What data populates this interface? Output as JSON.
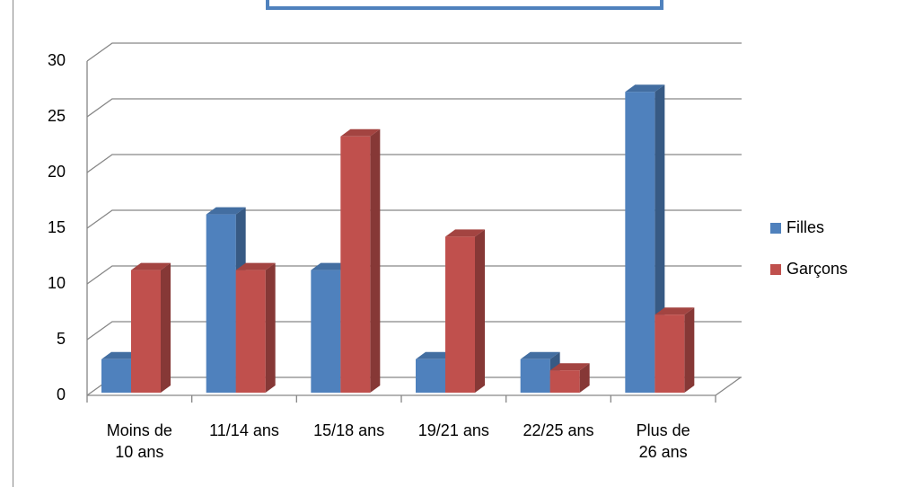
{
  "chart_data": {
    "type": "bar3d",
    "categories": [
      "Moins de 10 ans",
      "11/14 ans",
      "15/18 ans",
      "19/21 ans",
      "22/25 ans",
      "Plus de 26 ans"
    ],
    "series": [
      {
        "name": "Filles",
        "color": "#4f81bd",
        "values": [
          3,
          16,
          11,
          3,
          3,
          27
        ]
      },
      {
        "name": "Garçons",
        "color": "#c0504d",
        "values": [
          11,
          11,
          23,
          14,
          2,
          7
        ]
      }
    ],
    "ylim": [
      0,
      30
    ],
    "yticks": [
      0,
      5,
      10,
      15,
      20,
      25,
      30
    ],
    "grid": true,
    "legend": "right"
  }
}
